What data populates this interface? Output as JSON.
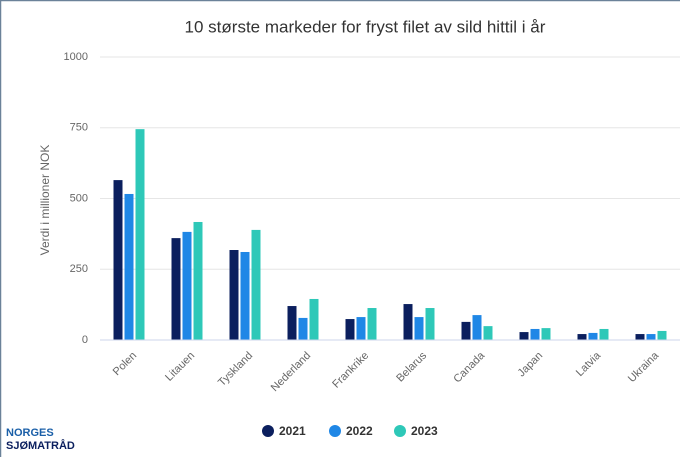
{
  "chart_data": {
    "type": "bar",
    "title": "10 største markeder for fryst filet av sild hittil i år",
    "y_label": "Verdi i millioner NOK",
    "categories": [
      "Polen",
      "Litauen",
      "Tyskland",
      "Nederland",
      "Frankrike",
      "Belarus",
      "Canada",
      "Japan",
      "Latvia",
      "Ukraina"
    ],
    "series": [
      {
        "name": "2021",
        "color": "#0b1f5e",
        "values": [
          565,
          360,
          318,
          120,
          74,
          127,
          64,
          28,
          21,
          21
        ]
      },
      {
        "name": "2022",
        "color": "#1f87e6",
        "values": [
          516,
          382,
          311,
          78,
          81,
          81,
          88,
          39,
          25,
          21
        ]
      },
      {
        "name": "2023",
        "color": "#2ec8b8",
        "values": [
          745,
          417,
          389,
          145,
          113,
          113,
          49,
          42,
          39,
          32
        ]
      }
    ],
    "ylim": [
      0,
      1000
    ],
    "yticks": [
      0,
      250,
      500,
      750,
      1000
    ],
    "grid": true,
    "legend": "bottom"
  },
  "logo": [
    "NORGES",
    "SJØMATRÅD"
  ]
}
